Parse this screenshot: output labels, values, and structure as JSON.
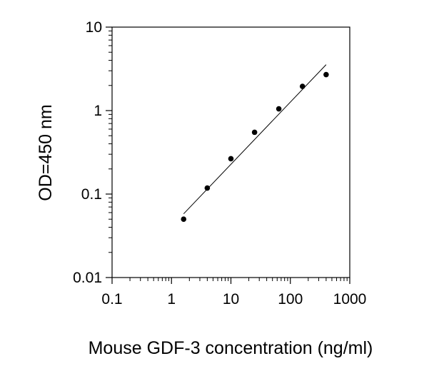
{
  "chart_data": {
    "type": "scatter",
    "title": "",
    "xlabel": "Mouse GDF-3 concentration (ng/ml)",
    "ylabel": "OD=450 nm",
    "xscale": "log",
    "yscale": "log",
    "xlim": [
      0.1,
      1000
    ],
    "ylim": [
      0.01,
      10
    ],
    "x_ticks": [
      0.1,
      1,
      10,
      100,
      1000
    ],
    "x_tick_labels": [
      "0.1",
      "1",
      "10",
      "100",
      "1000"
    ],
    "y_ticks": [
      0.01,
      0.1,
      1,
      10
    ],
    "y_tick_labels": [
      "0.01",
      "0.1",
      "1",
      "10"
    ],
    "grid": false,
    "legend": "none",
    "series": [
      {
        "x": [
          1.6,
          4,
          10,
          25,
          64,
          160,
          400
        ],
        "y": [
          0.05,
          0.118,
          0.265,
          0.55,
          1.05,
          1.95,
          2.7
        ],
        "marker_color": "#000000"
      }
    ],
    "fit_line": {
      "x": [
        1.6,
        400
      ],
      "y": [
        0.058,
        3.55
      ],
      "color": "#000000"
    }
  }
}
